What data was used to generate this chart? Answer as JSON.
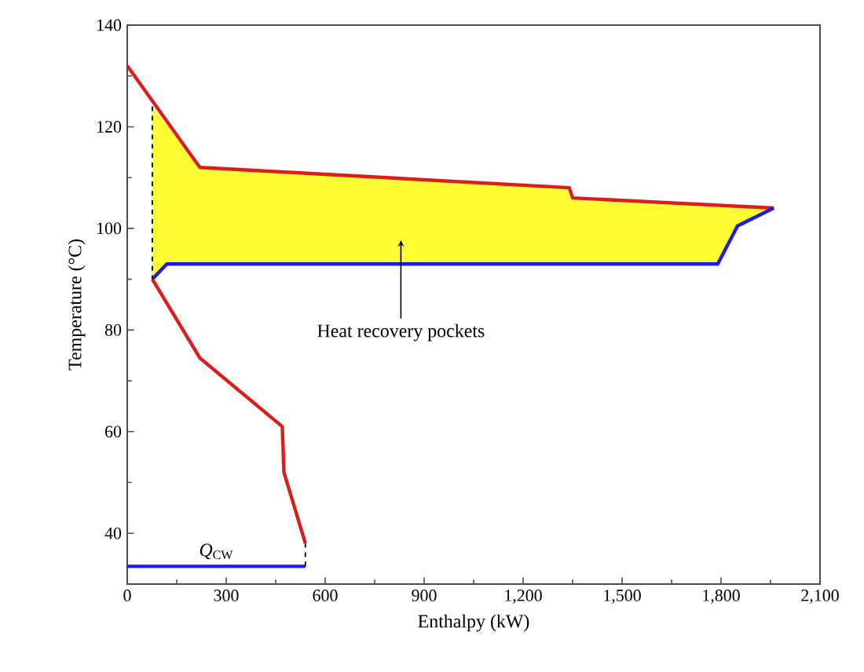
{
  "chart_data": {
    "type": "line",
    "xlabel": "Enthalpy (kW)",
    "ylabel": "Temperature (°C)",
    "xlim": [
      0,
      2100
    ],
    "ylim": [
      30,
      140
    ],
    "xticks": [
      0,
      300,
      600,
      900,
      {
        "value": 1200,
        "label": "1,200"
      },
      {
        "value": 1500,
        "label": "1,500"
      },
      {
        "value": 1800,
        "label": "1,800"
      },
      {
        "value": 2100,
        "label": "2,100"
      }
    ],
    "yticks": [
      40,
      60,
      80,
      100,
      120,
      140
    ],
    "series": [
      {
        "type": "area",
        "color": "#ffff33",
        "x": [
          76,
          220,
          1340,
          1350,
          1960,
          1850,
          1790,
          120,
          76
        ],
        "values": [
          124,
          112,
          108,
          106,
          104,
          100.5,
          93,
          93,
          90
        ]
      },
      {
        "color": "#dd1c1c",
        "x": [
          0,
          220,
          1340,
          1350,
          1960
        ],
        "values": [
          132,
          112,
          108,
          106,
          104
        ]
      },
      {
        "color": "#1a1aff",
        "x": [
          76,
          120,
          1790,
          1850,
          1960
        ],
        "values": [
          90,
          93,
          93,
          100.5,
          104
        ]
      },
      {
        "color": "#dd1c1c",
        "x": [
          76,
          220,
          470,
          475,
          540
        ],
        "values": [
          90,
          74.5,
          61,
          52,
          38
        ]
      },
      {
        "name": "*Q*$_{CW}$",
        "color": "#1a1aff",
        "x": [
          0,
          540
        ],
        "values": [
          33.5,
          33.5
        ]
      },
      {
        "color": "#000000",
        "line_style": "dashed",
        "x": [
          76,
          76
        ],
        "values": [
          124,
          90
        ]
      },
      {
        "color": "#000000",
        "line_style": "dashed",
        "x": [
          540,
          540
        ],
        "values": [
          33.5,
          38
        ]
      }
    ],
    "annotations": [
      "Heat recovery pockets"
    ]
  }
}
